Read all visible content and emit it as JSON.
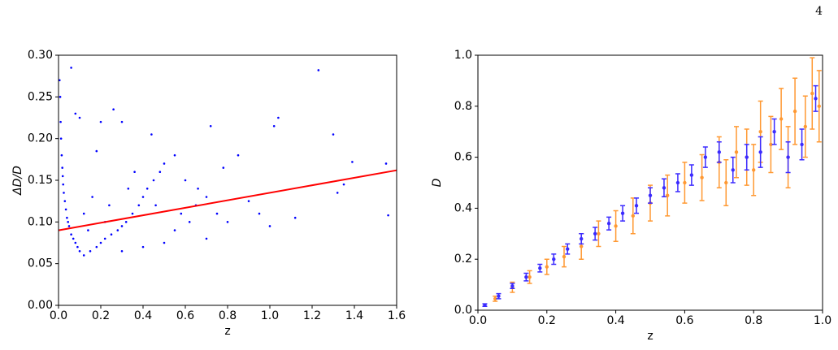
{
  "page_number": "4",
  "chart_data": [
    {
      "type": "scatter",
      "xlabel": "z",
      "ylabel": "ΔD/D",
      "xlim": [
        0,
        1.6
      ],
      "ylim": [
        0,
        0.3
      ],
      "xticks": [
        {
          "value": 0,
          "label": "0.0"
        },
        0.2,
        0.4,
        0.6,
        0.8,
        {
          "value": 1,
          "label": "1.0"
        },
        1.2,
        1.4,
        1.6
      ],
      "yticks": [
        {
          "value": 0,
          "label": "0.00"
        },
        0.05,
        {
          "value": 0.1,
          "label": "0.10"
        },
        0.15,
        {
          "value": 0.2,
          "label": "0.20"
        },
        0.25,
        {
          "value": 0.3,
          "label": "0.30"
        }
      ],
      "series": [
        {
          "type": "scatter",
          "color": "#0000ff",
          "x": [
            0.005,
            0.008,
            0.01,
            0.012,
            0.015,
            0.018,
            0.02,
            0.022,
            0.025,
            0.03,
            0.035,
            0.04,
            0.045,
            0.05,
            0.06,
            0.07,
            0.08,
            0.09,
            0.1,
            0.12,
            0.15,
            0.18,
            0.2,
            0.22,
            0.25,
            0.28,
            0.3,
            0.32,
            0.35,
            0.38,
            0.4,
            0.42,
            0.45,
            0.48,
            0.5,
            0.55,
            0.6,
            0.65,
            0.7,
            0.75,
            0.8,
            0.85,
            0.12,
            0.16,
            0.24,
            0.26,
            0.18,
            0.3,
            0.4,
            0.5,
            0.55,
            0.62,
            0.7,
            0.06,
            0.08,
            0.1,
            0.2,
            0.3,
            0.44,
            0.72,
            0.95,
            1.0,
            1.02,
            1.04,
            1.12,
            1.23,
            1.3,
            1.32,
            1.35,
            1.39,
            1.55,
            1.56,
            0.9,
            0.33,
            0.36,
            0.14,
            0.22,
            0.46,
            0.58,
            0.66,
            0.78
          ],
          "values": [
            0.27,
            0.25,
            0.22,
            0.2,
            0.18,
            0.165,
            0.155,
            0.145,
            0.135,
            0.125,
            0.115,
            0.105,
            0.1,
            0.095,
            0.085,
            0.08,
            0.075,
            0.07,
            0.065,
            0.06,
            0.065,
            0.07,
            0.075,
            0.08,
            0.085,
            0.09,
            0.095,
            0.1,
            0.11,
            0.12,
            0.13,
            0.14,
            0.15,
            0.16,
            0.17,
            0.18,
            0.15,
            0.12,
            0.13,
            0.11,
            0.1,
            0.18,
            0.11,
            0.13,
            0.12,
            0.235,
            0.185,
            0.065,
            0.07,
            0.075,
            0.09,
            0.1,
            0.08,
            0.285,
            0.23,
            0.225,
            0.22,
            0.22,
            0.205,
            0.215,
            0.11,
            0.095,
            0.215,
            0.225,
            0.105,
            0.282,
            0.205,
            0.135,
            0.145,
            0.172,
            0.17,
            0.108,
            0.125,
            0.14,
            0.16,
            0.09,
            0.1,
            0.12,
            0.11,
            0.14,
            0.165
          ]
        },
        {
          "type": "line",
          "color": "#ff0000",
          "x": [
            0,
            1.6
          ],
          "values": [
            0.09,
            0.162
          ]
        }
      ]
    },
    {
      "type": "scatter",
      "xlabel": "z",
      "ylabel": "D",
      "xlim": [
        0,
        1
      ],
      "ylim": [
        0,
        1
      ],
      "xticks": [
        {
          "value": 0,
          "label": "0.0"
        },
        0.2,
        0.4,
        0.6,
        0.8,
        {
          "value": 1,
          "label": "1.0"
        }
      ],
      "yticks": [
        {
          "value": 0,
          "label": "0.0"
        },
        0.2,
        0.4,
        0.6,
        0.8,
        {
          "value": 1,
          "label": "1.0"
        }
      ],
      "series": [
        {
          "type": "errorbar",
          "color": "#ff9933",
          "x": [
            0.05,
            0.1,
            0.15,
            0.2,
            0.25,
            0.3,
            0.35,
            0.4,
            0.45,
            0.5,
            0.55,
            0.6,
            0.65,
            0.7,
            0.72,
            0.75,
            0.78,
            0.8,
            0.82,
            0.85,
            0.88,
            0.9,
            0.92,
            0.95,
            0.97,
            0.99
          ],
          "values": [
            0.045,
            0.09,
            0.13,
            0.17,
            0.21,
            0.25,
            0.3,
            0.33,
            0.37,
            0.42,
            0.45,
            0.5,
            0.52,
            0.58,
            0.5,
            0.62,
            0.6,
            0.55,
            0.7,
            0.65,
            0.75,
            0.6,
            0.78,
            0.72,
            0.85,
            0.8
          ],
          "errors": [
            0.01,
            0.02,
            0.025,
            0.03,
            0.04,
            0.05,
            0.05,
            0.06,
            0.07,
            0.07,
            0.08,
            0.08,
            0.09,
            0.1,
            0.09,
            0.1,
            0.11,
            0.1,
            0.12,
            0.11,
            0.12,
            0.12,
            0.13,
            0.12,
            0.14,
            0.14
          ]
        },
        {
          "type": "errorbar",
          "color": "#3b2bff",
          "x": [
            0.02,
            0.06,
            0.1,
            0.14,
            0.18,
            0.22,
            0.26,
            0.3,
            0.34,
            0.38,
            0.42,
            0.46,
            0.5,
            0.54,
            0.58,
            0.62,
            0.66,
            0.7,
            0.74,
            0.78,
            0.82,
            0.86,
            0.9,
            0.94,
            0.98
          ],
          "values": [
            0.02,
            0.055,
            0.095,
            0.13,
            0.165,
            0.2,
            0.24,
            0.28,
            0.3,
            0.34,
            0.38,
            0.41,
            0.45,
            0.48,
            0.5,
            0.53,
            0.6,
            0.62,
            0.55,
            0.6,
            0.62,
            0.7,
            0.6,
            0.65,
            0.83
          ],
          "errors": [
            0.005,
            0.01,
            0.01,
            0.015,
            0.015,
            0.02,
            0.02,
            0.02,
            0.025,
            0.025,
            0.03,
            0.03,
            0.03,
            0.035,
            0.035,
            0.04,
            0.04,
            0.04,
            0.05,
            0.05,
            0.06,
            0.05,
            0.06,
            0.06,
            0.05
          ]
        }
      ]
    }
  ]
}
